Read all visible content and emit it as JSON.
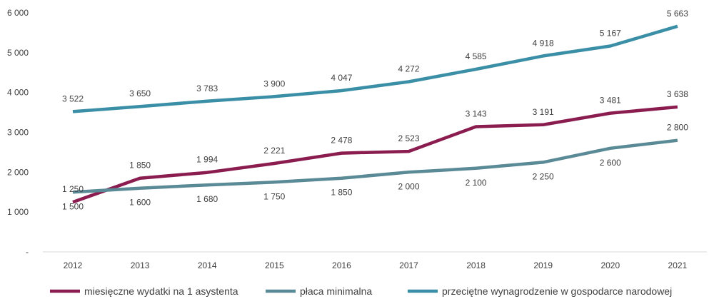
{
  "chart_data": {
    "type": "line",
    "title": "",
    "xlabel": "",
    "ylabel": "",
    "categories": [
      "2012",
      "2013",
      "2014",
      "2015",
      "2016",
      "2017",
      "2018",
      "2019",
      "2020",
      "2021"
    ],
    "ylim": [
      0,
      6000
    ],
    "yticks": [
      0,
      1000,
      2000,
      3000,
      4000,
      5000,
      6000
    ],
    "ytick_labels": [
      "-",
      "1 000",
      "2 000",
      "3 000",
      "4 000",
      "5 000",
      "6 000"
    ],
    "grid": false,
    "legend_position": "bottom",
    "series": [
      {
        "name": "miesięczne wydatki na 1 asystenta",
        "color": "#8B1C4F",
        "values": [
          1250,
          1850,
          1994,
          2221,
          2478,
          2523,
          3143,
          3191,
          3481,
          3638
        ],
        "labels": [
          "1 250",
          "1 850",
          "1 994",
          "2 221",
          "2 478",
          "2 523",
          "3 143",
          "3 191",
          "3 481",
          "3 638"
        ],
        "label_side": [
          "above",
          "above",
          "above",
          "above",
          "above",
          "above",
          "above",
          "above",
          "above",
          "above"
        ]
      },
      {
        "name": "płaca minimalna",
        "color": "#5B8A97",
        "values": [
          1500,
          1600,
          1680,
          1750,
          1850,
          2000,
          2100,
          2250,
          2600,
          2800
        ],
        "labels": [
          "1 500",
          "1 600",
          "1 680",
          "1 750",
          "1 850",
          "2 000",
          "2 100",
          "2 250",
          "2 600",
          "2 800"
        ],
        "label_side": [
          "below",
          "below",
          "below",
          "below",
          "below",
          "below",
          "below",
          "below",
          "below",
          "above"
        ]
      },
      {
        "name": "przeciętne wynagrodzenie w gospodarce narodowej",
        "color": "#3A8FA6",
        "values": [
          3522,
          3650,
          3783,
          3900,
          4047,
          4272,
          4585,
          4918,
          5167,
          5663
        ],
        "labels": [
          "3 522",
          "3 650",
          "3 783",
          "3 900",
          "4 047",
          "4 272",
          "4 585",
          "4 918",
          "5 167",
          "5 663"
        ],
        "label_side": [
          "above",
          "above",
          "above",
          "above",
          "above",
          "above",
          "above",
          "above",
          "above",
          "above"
        ]
      }
    ]
  }
}
